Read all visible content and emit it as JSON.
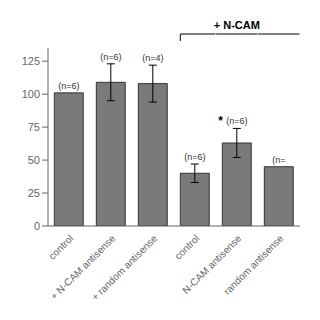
{
  "chart_data": {
    "type": "bar",
    "categories": [
      "control",
      "+ N-CAM antisense",
      "+ random antisense",
      "control",
      "N-CAM antisense",
      "random antisense"
    ],
    "values": [
      101,
      109,
      108,
      40,
      63,
      45
    ],
    "errors": [
      0,
      14,
      14,
      7,
      11,
      0
    ],
    "n_labels": [
      "(n=6)",
      "(n=6)",
      "(n=4)",
      "(n=6)",
      "(n=6)",
      "(n="
    ],
    "stars": [
      null,
      null,
      null,
      null,
      "*",
      null
    ],
    "brackets": [
      {
        "label": "+ N-CAM",
        "from": 3,
        "to": 5
      }
    ],
    "color": "#7a7a7a",
    "ylim": [
      0,
      135
    ],
    "yticks": [
      0,
      25,
      50,
      75,
      100,
      125
    ],
    "grid": false
  }
}
